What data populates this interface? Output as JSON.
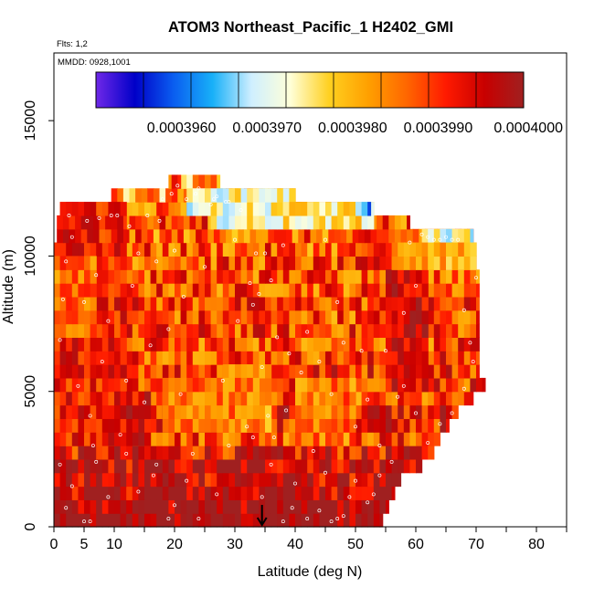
{
  "chart_data": {
    "type": "heatmap",
    "title": "ATOM3 Northeast_Pacific_1 H2402_GMI",
    "flights_label": "Flts: 1,2",
    "dates_label": "MMDD: 0928,1001",
    "xlabel": "Latitude (deg N)",
    "ylabel": "Altitude (m)",
    "xlim": [
      0,
      85
    ],
    "ylim": [
      0,
      17500
    ],
    "x_ticks": [
      0,
      5,
      10,
      20,
      30,
      40,
      50,
      60,
      70,
      80
    ],
    "x_tick_labels": [
      "0",
      "5",
      "10",
      "20",
      "30",
      "40",
      "50",
      "60",
      "70",
      "80"
    ],
    "y_ticks": [
      0,
      5000,
      10000,
      15000
    ],
    "y_tick_labels": [
      "0",
      "5000",
      "10000",
      "15000"
    ],
    "colorbar": {
      "min": 0.000395,
      "max": 0.0004,
      "tick_values": [
        0.000396,
        0.000397,
        0.000398,
        0.000399,
        0.0004
      ],
      "tick_labels": [
        "0.0003960",
        "0.0003970",
        "0.0003980",
        "0.0003990",
        "0.0004000"
      ],
      "colors": [
        "#6f28e8",
        "#0000c8",
        "#0a5ef0",
        "#18b0f8",
        "#cfefff",
        "#ffffd8",
        "#ffd020",
        "#ffa000",
        "#ff6600",
        "#ff1a00",
        "#c80000",
        "#a02020"
      ]
    },
    "marker": {
      "type": "arrow",
      "latitude": 34.5
    },
    "bands": [
      {
        "altitude": 250,
        "lat_min": 0,
        "lat_max": 54.5,
        "value": 0.0004
      },
      {
        "altitude": 750,
        "lat_min": 0,
        "lat_max": 55.5,
        "value": 0.0004
      },
      {
        "altitude": 1250,
        "lat_min": 0,
        "lat_max": 56.5,
        "value": 0.00039975
      },
      {
        "altitude": 1750,
        "lat_min": 0,
        "lat_max": 57.5,
        "value": 0.0003996
      },
      {
        "altitude": 2250,
        "lat_min": 0,
        "lat_max": 61,
        "value": 0.00039965
      },
      {
        "altitude": 2750,
        "lat_min": 0,
        "lat_max": 63,
        "value": 0.0003993
      },
      {
        "altitude": 3250,
        "lat_min": 0,
        "lat_max": 64,
        "value": 0.0003989
      },
      {
        "altitude": 3750,
        "lat_min": 0,
        "lat_max": 65.5,
        "value": 0.0003992
      },
      {
        "altitude": 4250,
        "lat_min": 0,
        "lat_max": 67,
        "value": 0.0003993
      },
      {
        "altitude": 4750,
        "lat_min": 0,
        "lat_max": 69.5,
        "value": 0.0003986
      },
      {
        "altitude": 5250,
        "lat_min": 0,
        "lat_max": 71.5,
        "value": 0.000399
      },
      {
        "altitude": 5750,
        "lat_min": 0,
        "lat_max": 70.5,
        "value": 0.0003991
      },
      {
        "altitude": 6250,
        "lat_min": 0,
        "lat_max": 70.5,
        "value": 0.0003989
      },
      {
        "altitude": 6750,
        "lat_min": 0,
        "lat_max": 70.5,
        "value": 0.0003988
      },
      {
        "altitude": 7250,
        "lat_min": 0,
        "lat_max": 70.5,
        "value": 0.0003989
      },
      {
        "altitude": 7750,
        "lat_min": 0,
        "lat_max": 70.5,
        "value": 0.0003988
      },
      {
        "altitude": 8250,
        "lat_min": 0,
        "lat_max": 70.5,
        "value": 0.0003989
      },
      {
        "altitude": 8750,
        "lat_min": 0,
        "lat_max": 70.5,
        "value": 0.0003988
      },
      {
        "altitude": 9250,
        "lat_min": 0,
        "lat_max": 70.5,
        "value": 0.0003988
      },
      {
        "altitude": 9750,
        "lat_min": 0,
        "lat_max": 70,
        "value": 0.0003988
      },
      {
        "altitude": 10250,
        "lat_min": 0,
        "lat_max": 70,
        "value": 0.0003987
      },
      {
        "altitude": 10750,
        "lat_min": 0.5,
        "lat_max": 69.5,
        "value": 0.0003986
      },
      {
        "altitude": 11250,
        "lat_min": 0.5,
        "lat_max": 59,
        "value": 0.0003988
      },
      {
        "altitude": 11750,
        "lat_min": 1,
        "lat_max": 53,
        "value": 0.0003986
      },
      {
        "altitude": 12250,
        "lat_min": 9.5,
        "lat_max": 40,
        "value": 0.0003982
      },
      {
        "altitude": 12750,
        "lat_min": 19,
        "lat_max": 27.5,
        "value": 0.000398
      }
    ],
    "features": [
      {
        "lat_min": 0,
        "lat_max": 12,
        "alt_min": 3000,
        "alt_max": 12000,
        "value": 0.0003992
      },
      {
        "lat_min": 0,
        "lat_max": 7,
        "alt_min": 7000,
        "alt_max": 10000,
        "value": 0.0003986
      },
      {
        "lat_min": 55,
        "lat_max": 62,
        "alt_min": 5000,
        "alt_max": 9500,
        "value": 0.0003995
      },
      {
        "lat_min": 28,
        "lat_max": 36,
        "alt_min": 3500,
        "alt_max": 6000,
        "value": 0.0003981
      },
      {
        "lat_min": 18,
        "lat_max": 34,
        "alt_min": 3500,
        "alt_max": 5500,
        "value": 0.0003985
      },
      {
        "lat_min": 40,
        "lat_max": 50,
        "alt_min": 3000,
        "alt_max": 5500,
        "value": 0.0003985
      },
      {
        "lat_min": 10,
        "lat_max": 16,
        "alt_min": 3000,
        "alt_max": 5000,
        "value": 0.0003994
      },
      {
        "lat_min": 22,
        "lat_max": 26,
        "alt_min": 11500,
        "alt_max": 12500,
        "value": 0.000397
      },
      {
        "lat_min": 26,
        "lat_max": 40,
        "alt_min": 11000,
        "alt_max": 12500,
        "value": 0.0003973
      },
      {
        "lat_min": 38,
        "lat_max": 53,
        "alt_min": 11000,
        "alt_max": 12000,
        "value": 0.0003975
      },
      {
        "lat_min": 50,
        "lat_max": 52.5,
        "alt_min": 11500,
        "alt_max": 12000,
        "value": 0.0003963
      },
      {
        "lat_min": 61,
        "lat_max": 70,
        "alt_min": 10500,
        "alt_max": 11500,
        "value": 0.0003972
      },
      {
        "lat_min": 62,
        "lat_max": 65,
        "alt_min": 11000,
        "alt_max": 11500,
        "value": 0.0003962
      },
      {
        "lat_min": 56,
        "lat_max": 70,
        "alt_min": 9500,
        "alt_max": 10500,
        "value": 0.000398
      },
      {
        "lat_min": 19.5,
        "lat_max": 21,
        "alt_min": 12500,
        "alt_max": 13000,
        "value": 0.0003993
      }
    ],
    "points": [
      [
        1,
        6900
      ],
      [
        1.5,
        8400
      ],
      [
        2,
        9800
      ],
      [
        2.5,
        11500
      ],
      [
        3,
        10700
      ],
      [
        4,
        5200
      ],
      [
        5,
        8300
      ],
      [
        5.5,
        11300
      ],
      [
        6,
        4100
      ],
      [
        6.5,
        3000
      ],
      [
        7,
        9300
      ],
      [
        7.5,
        11400
      ],
      [
        8,
        6100
      ],
      [
        9,
        7600
      ],
      [
        9.5,
        11500
      ],
      [
        10.5,
        11500
      ],
      [
        11,
        3400
      ],
      [
        12,
        5400
      ],
      [
        12.5,
        11100
      ],
      [
        13,
        8900
      ],
      [
        14,
        10100
      ],
      [
        15,
        4600
      ],
      [
        15.5,
        11500
      ],
      [
        16,
        6700
      ],
      [
        16.5,
        1900
      ],
      [
        17,
        9800
      ],
      [
        17.5,
        11300
      ],
      [
        18,
        12100
      ],
      [
        19,
        7300
      ],
      [
        19.5,
        12300
      ],
      [
        20,
        10200
      ],
      [
        20.5,
        12600
      ],
      [
        21,
        4900
      ],
      [
        21.5,
        8500
      ],
      [
        22,
        12100
      ],
      [
        23,
        2700
      ],
      [
        23.5,
        12300
      ],
      [
        24,
        12500
      ],
      [
        25,
        9600
      ],
      [
        26,
        11900
      ],
      [
        26.5,
        12100
      ],
      [
        27,
        12200
      ],
      [
        28,
        5400
      ],
      [
        28.5,
        12000
      ],
      [
        29,
        12000
      ],
      [
        30,
        10600
      ],
      [
        30.5,
        7600
      ],
      [
        31,
        11700
      ],
      [
        32,
        3700
      ],
      [
        32.5,
        9000
      ],
      [
        33,
        8200
      ],
      [
        33.5,
        10100
      ],
      [
        34,
        8600
      ],
      [
        34.5,
        5900
      ],
      [
        35,
        10100
      ],
      [
        35.5,
        4100
      ],
      [
        36,
        9100
      ],
      [
        36.5,
        3300
      ],
      [
        37,
        7000
      ],
      [
        38,
        10400
      ],
      [
        38.5,
        4300
      ],
      [
        39,
        6400
      ],
      [
        40,
        1600
      ],
      [
        41,
        5700
      ],
      [
        42,
        7200
      ],
      [
        43,
        2800
      ],
      [
        44,
        6100
      ],
      [
        45,
        10600
      ],
      [
        46,
        4900
      ],
      [
        47,
        8300
      ],
      [
        48,
        6800
      ],
      [
        49,
        1100
      ],
      [
        50,
        3700
      ],
      [
        51,
        6500
      ],
      [
        52,
        4700
      ],
      [
        53,
        1200
      ],
      [
        54,
        3000
      ],
      [
        55,
        6500
      ],
      [
        56,
        2400
      ],
      [
        57,
        4800
      ],
      [
        58,
        7900
      ],
      [
        59,
        10500
      ],
      [
        60,
        8900
      ],
      [
        61,
        10800
      ],
      [
        62,
        10700
      ],
      [
        63,
        10600
      ],
      [
        64,
        10600
      ],
      [
        65,
        10700
      ],
      [
        66,
        10600
      ],
      [
        67,
        10600
      ],
      [
        68,
        8000
      ],
      [
        69,
        6800
      ],
      [
        70,
        9200
      ],
      [
        1,
        2300
      ],
      [
        2,
        700
      ],
      [
        3,
        1500
      ],
      [
        5,
        200
      ],
      [
        6,
        200
      ],
      [
        7,
        2400
      ],
      [
        9,
        1100
      ],
      [
        12,
        2700
      ],
      [
        14,
        1300
      ],
      [
        17,
        2300
      ],
      [
        19,
        300
      ],
      [
        20,
        800
      ],
      [
        22,
        1700
      ],
      [
        24,
        300
      ],
      [
        27,
        1200
      ],
      [
        29,
        3000
      ],
      [
        33,
        3300
      ],
      [
        34.5,
        1100
      ],
      [
        36,
        2300
      ],
      [
        38,
        200
      ],
      [
        39.5,
        700
      ],
      [
        42,
        300
      ],
      [
        44,
        600
      ],
      [
        45,
        2000
      ],
      [
        46,
        200
      ],
      [
        47,
        300
      ],
      [
        48,
        400
      ],
      [
        50,
        1700
      ],
      [
        52,
        900
      ],
      [
        54,
        1900
      ],
      [
        58,
        5200
      ],
      [
        60,
        4200
      ],
      [
        62,
        3100
      ],
      [
        64,
        3800
      ],
      [
        66,
        4200
      ],
      [
        68,
        5100
      ],
      [
        69.5,
        6100
      ]
    ]
  }
}
